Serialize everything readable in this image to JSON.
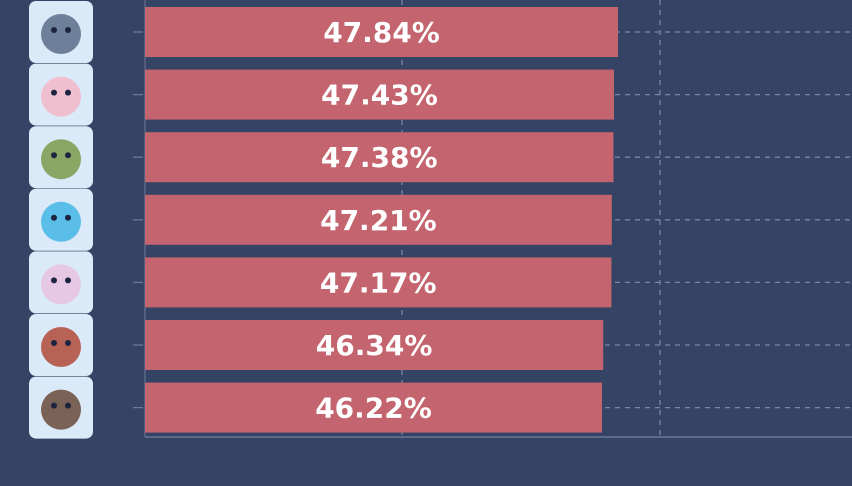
{
  "chart_data": {
    "type": "bar",
    "orientation": "horizontal",
    "categories": [
      "absol-icon",
      "wigglytuff-icon",
      "decidueye-icon",
      "azumarill-icon",
      "espeon-icon",
      "talonflame-icon",
      "ceruledge-icon"
    ],
    "values": [
      47.84,
      47.43,
      47.38,
      47.21,
      47.17,
      46.34,
      46.22
    ],
    "labels": [
      "47.84%",
      "47.43%",
      "47.38%",
      "47.21%",
      "47.17%",
      "46.34%",
      "46.22%"
    ],
    "xlim": [
      0,
      71.5
    ],
    "grid": true,
    "legend": "none"
  },
  "colors": {
    "background": "#354365",
    "bar": "#c4646e",
    "grid": "#7a86a3",
    "axis": "#6d7897",
    "label": "#ffffff",
    "avatar_bg": "#dbeaf8"
  }
}
